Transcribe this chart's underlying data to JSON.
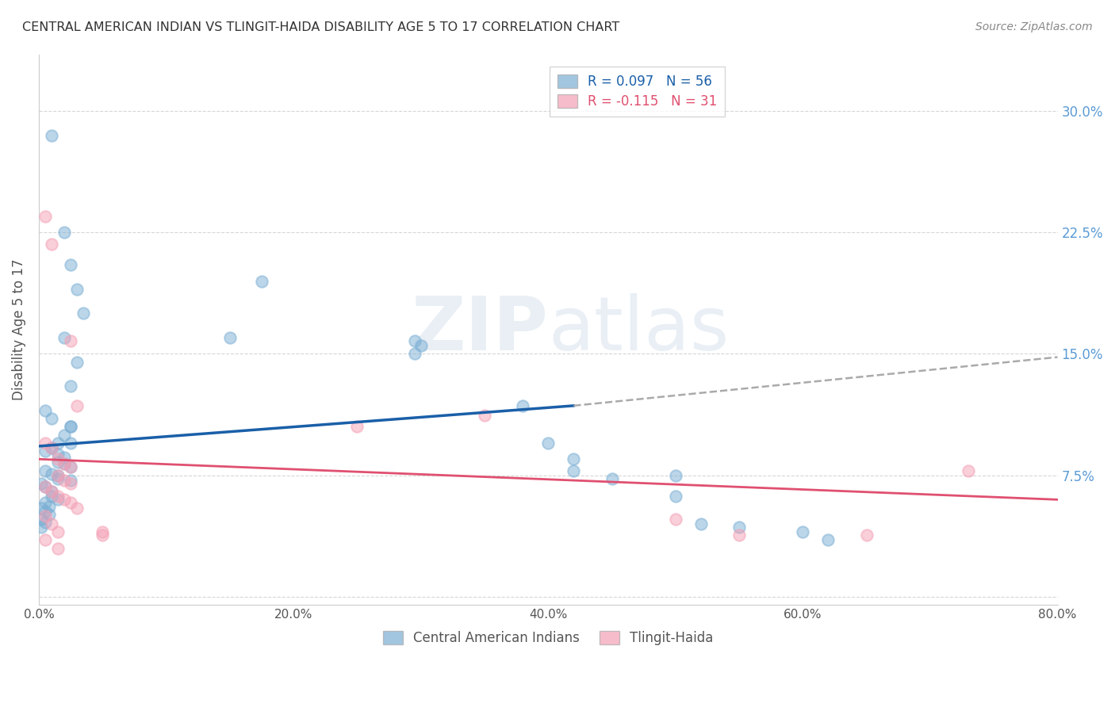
{
  "title": "CENTRAL AMERICAN INDIAN VS TLINGIT-HAIDA DISABILITY AGE 5 TO 17 CORRELATION CHART",
  "source": "Source: ZipAtlas.com",
  "ylabel": "Disability Age 5 to 17",
  "xlim": [
    0.0,
    0.8
  ],
  "ylim": [
    -0.005,
    0.335
  ],
  "legend_label_blue": "Central American Indians",
  "legend_label_pink": "Tlingit-Haida",
  "blue_scatter": [
    [
      0.01,
      0.285
    ],
    [
      0.02,
      0.225
    ],
    [
      0.025,
      0.205
    ],
    [
      0.03,
      0.19
    ],
    [
      0.035,
      0.175
    ],
    [
      0.02,
      0.16
    ],
    [
      0.03,
      0.145
    ],
    [
      0.025,
      0.13
    ],
    [
      0.005,
      0.115
    ],
    [
      0.01,
      0.11
    ],
    [
      0.025,
      0.105
    ],
    [
      0.025,
      0.105
    ],
    [
      0.02,
      0.1
    ],
    [
      0.015,
      0.095
    ],
    [
      0.025,
      0.095
    ],
    [
      0.01,
      0.092
    ],
    [
      0.005,
      0.09
    ],
    [
      0.015,
      0.088
    ],
    [
      0.02,
      0.086
    ],
    [
      0.015,
      0.083
    ],
    [
      0.02,
      0.082
    ],
    [
      0.025,
      0.08
    ],
    [
      0.005,
      0.078
    ],
    [
      0.01,
      0.076
    ],
    [
      0.015,
      0.075
    ],
    [
      0.015,
      0.073
    ],
    [
      0.025,
      0.072
    ],
    [
      0.002,
      0.07
    ],
    [
      0.005,
      0.068
    ],
    [
      0.01,
      0.065
    ],
    [
      0.01,
      0.062
    ],
    [
      0.015,
      0.06
    ],
    [
      0.005,
      0.058
    ],
    [
      0.008,
      0.056
    ],
    [
      0.002,
      0.055
    ],
    [
      0.005,
      0.053
    ],
    [
      0.008,
      0.051
    ],
    [
      0.002,
      0.048
    ],
    [
      0.005,
      0.046
    ],
    [
      0.002,
      0.043
    ],
    [
      0.15,
      0.16
    ],
    [
      0.175,
      0.195
    ],
    [
      0.295,
      0.158
    ],
    [
      0.295,
      0.15
    ],
    [
      0.3,
      0.155
    ],
    [
      0.38,
      0.118
    ],
    [
      0.4,
      0.095
    ],
    [
      0.42,
      0.085
    ],
    [
      0.42,
      0.078
    ],
    [
      0.45,
      0.073
    ],
    [
      0.5,
      0.075
    ],
    [
      0.5,
      0.062
    ],
    [
      0.52,
      0.045
    ],
    [
      0.55,
      0.043
    ],
    [
      0.6,
      0.04
    ],
    [
      0.62,
      0.035
    ]
  ],
  "pink_scatter": [
    [
      0.005,
      0.235
    ],
    [
      0.01,
      0.218
    ],
    [
      0.025,
      0.158
    ],
    [
      0.03,
      0.118
    ],
    [
      0.005,
      0.095
    ],
    [
      0.01,
      0.092
    ],
    [
      0.015,
      0.085
    ],
    [
      0.02,
      0.082
    ],
    [
      0.025,
      0.08
    ],
    [
      0.015,
      0.075
    ],
    [
      0.02,
      0.072
    ],
    [
      0.025,
      0.07
    ],
    [
      0.005,
      0.068
    ],
    [
      0.01,
      0.065
    ],
    [
      0.015,
      0.062
    ],
    [
      0.02,
      0.06
    ],
    [
      0.025,
      0.058
    ],
    [
      0.03,
      0.055
    ],
    [
      0.005,
      0.05
    ],
    [
      0.01,
      0.045
    ],
    [
      0.015,
      0.04
    ],
    [
      0.05,
      0.04
    ],
    [
      0.05,
      0.038
    ],
    [
      0.005,
      0.035
    ],
    [
      0.015,
      0.03
    ],
    [
      0.25,
      0.105
    ],
    [
      0.35,
      0.112
    ],
    [
      0.5,
      0.048
    ],
    [
      0.55,
      0.038
    ],
    [
      0.65,
      0.038
    ],
    [
      0.73,
      0.078
    ]
  ],
  "blue_line_x": [
    0.0,
    0.42
  ],
  "blue_line_y_start": 0.093,
  "blue_line_y_end": 0.118,
  "pink_line_x": [
    0.0,
    0.8
  ],
  "pink_line_y_start": 0.085,
  "pink_line_y_end": 0.06,
  "dashed_line_x": [
    0.42,
    0.8
  ],
  "dashed_line_y_start": 0.118,
  "dashed_line_y_end": 0.148,
  "scatter_blue_color": "#7bafd4",
  "scatter_pink_color": "#f4a0b5",
  "trend_blue_color": "#1a5fa8",
  "trend_pink_color": "#e05070",
  "dashed_color": "#aaaaaa",
  "background_color": "#ffffff",
  "grid_color": "#cccccc",
  "title_color": "#333333",
  "source_color": "#888888",
  "right_ytick_color": "#5b9bd5",
  "marker_size": 110,
  "alpha": 0.5
}
